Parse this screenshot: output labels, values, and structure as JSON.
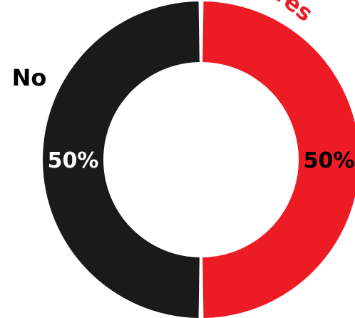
{
  "chart_data": {
    "type": "pie",
    "donut": true,
    "categories": [
      "Yes",
      "No"
    ],
    "values": [
      50,
      50
    ],
    "value_labels": [
      "50%",
      "50%"
    ],
    "colors": [
      "#ed1c24",
      "#1a1a1a"
    ],
    "label_colors": [
      "#ed1c24",
      "#000000"
    ],
    "value_label_colors": [
      "#000000",
      "#ffffff"
    ],
    "legend": "none"
  }
}
